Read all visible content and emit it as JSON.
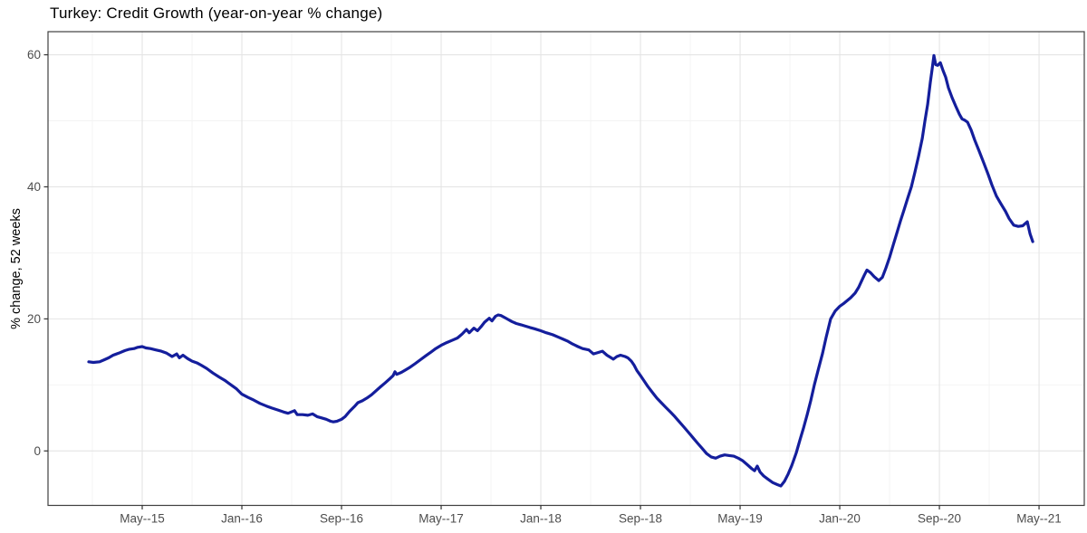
{
  "chart": {
    "title": "Turkey: Credit Growth (year-on-year % change)",
    "y_axis_label": "% change, 52 weeks"
  },
  "chart_data": {
    "type": "line",
    "title": "Turkey: Credit Growth (year-on-year % change)",
    "xlabel": "",
    "ylabel": "% change, 52 weeks",
    "legend_position": "none",
    "grid": "major-and-minor",
    "line_color": "#141E9C",
    "grid_major_color": "#E4E4E4",
    "grid_minor_color": "#F3F3F3",
    "border_color": "#3F3F3F",
    "tick_color": "#333333",
    "tick_label_color": "#4D4D4D",
    "xlim": [
      2014.703,
      2021.636
    ],
    "ylim": [
      -8.25,
      63.5
    ],
    "x_ticks": [
      {
        "t": 2015.3333,
        "label": "May--15"
      },
      {
        "t": 2016.0,
        "label": "Jan--16"
      },
      {
        "t": 2016.6667,
        "label": "Sep--16"
      },
      {
        "t": 2017.3333,
        "label": "May--17"
      },
      {
        "t": 2018.0,
        "label": "Jan--18"
      },
      {
        "t": 2018.6667,
        "label": "Sep--18"
      },
      {
        "t": 2019.3333,
        "label": "May--19"
      },
      {
        "t": 2020.0,
        "label": "Jan--20"
      },
      {
        "t": 2020.6667,
        "label": "Sep--20"
      },
      {
        "t": 2021.3333,
        "label": "May--21"
      }
    ],
    "x_minor_ticks": [
      2015.0,
      2015.6667,
      2016.3333,
      2017.0,
      2017.6667,
      2018.3333,
      2019.0,
      2019.6667,
      2020.3333,
      2021.0
    ],
    "y_ticks": [
      {
        "v": 0,
        "label": "0"
      },
      {
        "v": 20,
        "label": "20"
      },
      {
        "v": 40,
        "label": "40"
      },
      {
        "v": 60,
        "label": "60"
      }
    ],
    "y_minor_ticks": [
      10,
      30,
      50
    ],
    "series": [
      {
        "points": [
          [
            2014.976,
            13.5
          ],
          [
            2015.006,
            13.4
          ],
          [
            2015.048,
            13.5
          ],
          [
            2015.079,
            13.8
          ],
          [
            2015.109,
            14.1
          ],
          [
            2015.139,
            14.5
          ],
          [
            2015.176,
            14.8
          ],
          [
            2015.218,
            15.2
          ],
          [
            2015.248,
            15.4
          ],
          [
            2015.279,
            15.5
          ],
          [
            2015.303,
            15.7
          ],
          [
            2015.333,
            15.8
          ],
          [
            2015.358,
            15.6
          ],
          [
            2015.388,
            15.5
          ],
          [
            2015.424,
            15.3
          ],
          [
            2015.461,
            15.1
          ],
          [
            2015.497,
            14.8
          ],
          [
            2015.533,
            14.3
          ],
          [
            2015.564,
            14.7
          ],
          [
            2015.582,
            14.1
          ],
          [
            2015.606,
            14.5
          ],
          [
            2015.636,
            14.0
          ],
          [
            2015.667,
            13.6
          ],
          [
            2015.703,
            13.3
          ],
          [
            2015.727,
            13.0
          ],
          [
            2015.764,
            12.5
          ],
          [
            2015.806,
            11.8
          ],
          [
            2015.848,
            11.2
          ],
          [
            2015.885,
            10.7
          ],
          [
            2015.927,
            10.0
          ],
          [
            2015.964,
            9.4
          ],
          [
            2016.0,
            8.6
          ],
          [
            2016.042,
            8.1
          ],
          [
            2016.079,
            7.7
          ],
          [
            2016.121,
            7.2
          ],
          [
            2016.164,
            6.8
          ],
          [
            2016.2,
            6.5
          ],
          [
            2016.242,
            6.2
          ],
          [
            2016.279,
            5.9
          ],
          [
            2016.309,
            5.7
          ],
          [
            2016.352,
            6.1
          ],
          [
            2016.37,
            5.5
          ],
          [
            2016.406,
            5.5
          ],
          [
            2016.442,
            5.4
          ],
          [
            2016.473,
            5.6
          ],
          [
            2016.503,
            5.2
          ],
          [
            2016.533,
            5.0
          ],
          [
            2016.564,
            4.8
          ],
          [
            2016.594,
            4.5
          ],
          [
            2016.612,
            4.4
          ],
          [
            2016.636,
            4.5
          ],
          [
            2016.667,
            4.8
          ],
          [
            2016.691,
            5.2
          ],
          [
            2016.721,
            6.0
          ],
          [
            2016.752,
            6.7
          ],
          [
            2016.776,
            7.3
          ],
          [
            2016.806,
            7.6
          ],
          [
            2016.836,
            8.0
          ],
          [
            2016.867,
            8.5
          ],
          [
            2016.897,
            9.1
          ],
          [
            2016.927,
            9.7
          ],
          [
            2016.958,
            10.3
          ],
          [
            2016.988,
            10.9
          ],
          [
            2017.012,
            11.4
          ],
          [
            2017.024,
            12.0
          ],
          [
            2017.036,
            11.6
          ],
          [
            2017.067,
            11.9
          ],
          [
            2017.097,
            12.3
          ],
          [
            2017.127,
            12.7
          ],
          [
            2017.158,
            13.2
          ],
          [
            2017.194,
            13.8
          ],
          [
            2017.23,
            14.4
          ],
          [
            2017.261,
            14.9
          ],
          [
            2017.297,
            15.5
          ],
          [
            2017.333,
            16.0
          ],
          [
            2017.37,
            16.4
          ],
          [
            2017.412,
            16.8
          ],
          [
            2017.442,
            17.1
          ],
          [
            2017.473,
            17.7
          ],
          [
            2017.503,
            18.4
          ],
          [
            2017.521,
            17.9
          ],
          [
            2017.552,
            18.6
          ],
          [
            2017.576,
            18.2
          ],
          [
            2017.6,
            18.8
          ],
          [
            2017.624,
            19.5
          ],
          [
            2017.655,
            20.1
          ],
          [
            2017.673,
            19.7
          ],
          [
            2017.697,
            20.4
          ],
          [
            2017.715,
            20.6
          ],
          [
            2017.733,
            20.5
          ],
          [
            2017.758,
            20.2
          ],
          [
            2017.782,
            19.9
          ],
          [
            2017.806,
            19.6
          ],
          [
            2017.836,
            19.3
          ],
          [
            2017.867,
            19.1
          ],
          [
            2017.897,
            18.9
          ],
          [
            2017.927,
            18.7
          ],
          [
            2017.958,
            18.5
          ],
          [
            2018.0,
            18.2
          ],
          [
            2018.036,
            17.9
          ],
          [
            2018.079,
            17.6
          ],
          [
            2018.121,
            17.2
          ],
          [
            2018.152,
            16.9
          ],
          [
            2018.182,
            16.6
          ],
          [
            2018.212,
            16.2
          ],
          [
            2018.248,
            15.8
          ],
          [
            2018.279,
            15.5
          ],
          [
            2018.321,
            15.3
          ],
          [
            2018.352,
            14.7
          ],
          [
            2018.382,
            14.9
          ],
          [
            2018.412,
            15.1
          ],
          [
            2018.442,
            14.5
          ],
          [
            2018.485,
            13.9
          ],
          [
            2018.509,
            14.3
          ],
          [
            2018.533,
            14.5
          ],
          [
            2018.564,
            14.3
          ],
          [
            2018.582,
            14.1
          ],
          [
            2018.606,
            13.6
          ],
          [
            2018.624,
            13.0
          ],
          [
            2018.642,
            12.2
          ],
          [
            2018.667,
            11.4
          ],
          [
            2018.691,
            10.6
          ],
          [
            2018.715,
            9.8
          ],
          [
            2018.745,
            8.9
          ],
          [
            2018.776,
            8.0
          ],
          [
            2018.806,
            7.3
          ],
          [
            2018.836,
            6.6
          ],
          [
            2018.867,
            5.9
          ],
          [
            2018.897,
            5.2
          ],
          [
            2018.927,
            4.4
          ],
          [
            2018.958,
            3.6
          ],
          [
            2018.988,
            2.8
          ],
          [
            2019.018,
            2.0
          ],
          [
            2019.048,
            1.2
          ],
          [
            2019.079,
            0.4
          ],
          [
            2019.109,
            -0.4
          ],
          [
            2019.139,
            -0.9
          ],
          [
            2019.17,
            -1.1
          ],
          [
            2019.2,
            -0.8
          ],
          [
            2019.23,
            -0.6
          ],
          [
            2019.261,
            -0.7
          ],
          [
            2019.291,
            -0.8
          ],
          [
            2019.321,
            -1.1
          ],
          [
            2019.352,
            -1.5
          ],
          [
            2019.382,
            -2.1
          ],
          [
            2019.412,
            -2.7
          ],
          [
            2019.43,
            -3.0
          ],
          [
            2019.448,
            -2.3
          ],
          [
            2019.467,
            -3.2
          ],
          [
            2019.491,
            -3.8
          ],
          [
            2019.521,
            -4.3
          ],
          [
            2019.552,
            -4.8
          ],
          [
            2019.582,
            -5.1
          ],
          [
            2019.606,
            -5.3
          ],
          [
            2019.63,
            -4.6
          ],
          [
            2019.655,
            -3.5
          ],
          [
            2019.679,
            -2.2
          ],
          [
            2019.709,
            -0.3
          ],
          [
            2019.733,
            1.6
          ],
          [
            2019.758,
            3.5
          ],
          [
            2019.782,
            5.5
          ],
          [
            2019.806,
            7.6
          ],
          [
            2019.83,
            10.0
          ],
          [
            2019.855,
            12.2
          ],
          [
            2019.885,
            14.8
          ],
          [
            2019.909,
            17.2
          ],
          [
            2019.939,
            20.0
          ],
          [
            2019.97,
            21.2
          ],
          [
            2020.0,
            21.9
          ],
          [
            2020.03,
            22.4
          ],
          [
            2020.073,
            23.2
          ],
          [
            2020.103,
            23.9
          ],
          [
            2020.127,
            24.8
          ],
          [
            2020.145,
            25.7
          ],
          [
            2020.164,
            26.6
          ],
          [
            2020.182,
            27.4
          ],
          [
            2020.206,
            27.0
          ],
          [
            2020.23,
            26.4
          ],
          [
            2020.261,
            25.8
          ],
          [
            2020.285,
            26.3
          ],
          [
            2020.309,
            27.7
          ],
          [
            2020.333,
            29.3
          ],
          [
            2020.358,
            31.2
          ],
          [
            2020.382,
            33.0
          ],
          [
            2020.406,
            34.8
          ],
          [
            2020.43,
            36.5
          ],
          [
            2020.455,
            38.3
          ],
          [
            2020.479,
            40.0
          ],
          [
            2020.503,
            42.2
          ],
          [
            2020.527,
            44.6
          ],
          [
            2020.552,
            47.3
          ],
          [
            2020.57,
            50.0
          ],
          [
            2020.588,
            52.5
          ],
          [
            2020.606,
            55.8
          ],
          [
            2020.618,
            57.8
          ],
          [
            2020.63,
            59.9
          ],
          [
            2020.642,
            58.5
          ],
          [
            2020.655,
            58.4
          ],
          [
            2020.673,
            58.8
          ],
          [
            2020.691,
            57.6
          ],
          [
            2020.709,
            56.6
          ],
          [
            2020.727,
            55.0
          ],
          [
            2020.752,
            53.5
          ],
          [
            2020.776,
            52.2
          ],
          [
            2020.8,
            51.0
          ],
          [
            2020.818,
            50.3
          ],
          [
            2020.836,
            50.1
          ],
          [
            2020.855,
            49.8
          ],
          [
            2020.879,
            48.6
          ],
          [
            2020.903,
            47.1
          ],
          [
            2020.933,
            45.4
          ],
          [
            2020.964,
            43.6
          ],
          [
            2020.994,
            41.8
          ],
          [
            2021.018,
            40.3
          ],
          [
            2021.048,
            38.6
          ],
          [
            2021.079,
            37.4
          ],
          [
            2021.109,
            36.3
          ],
          [
            2021.133,
            35.2
          ],
          [
            2021.164,
            34.2
          ],
          [
            2021.194,
            34.0
          ],
          [
            2021.224,
            34.1
          ],
          [
            2021.255,
            34.7
          ],
          [
            2021.273,
            32.9
          ],
          [
            2021.291,
            31.7
          ]
        ]
      }
    ]
  }
}
